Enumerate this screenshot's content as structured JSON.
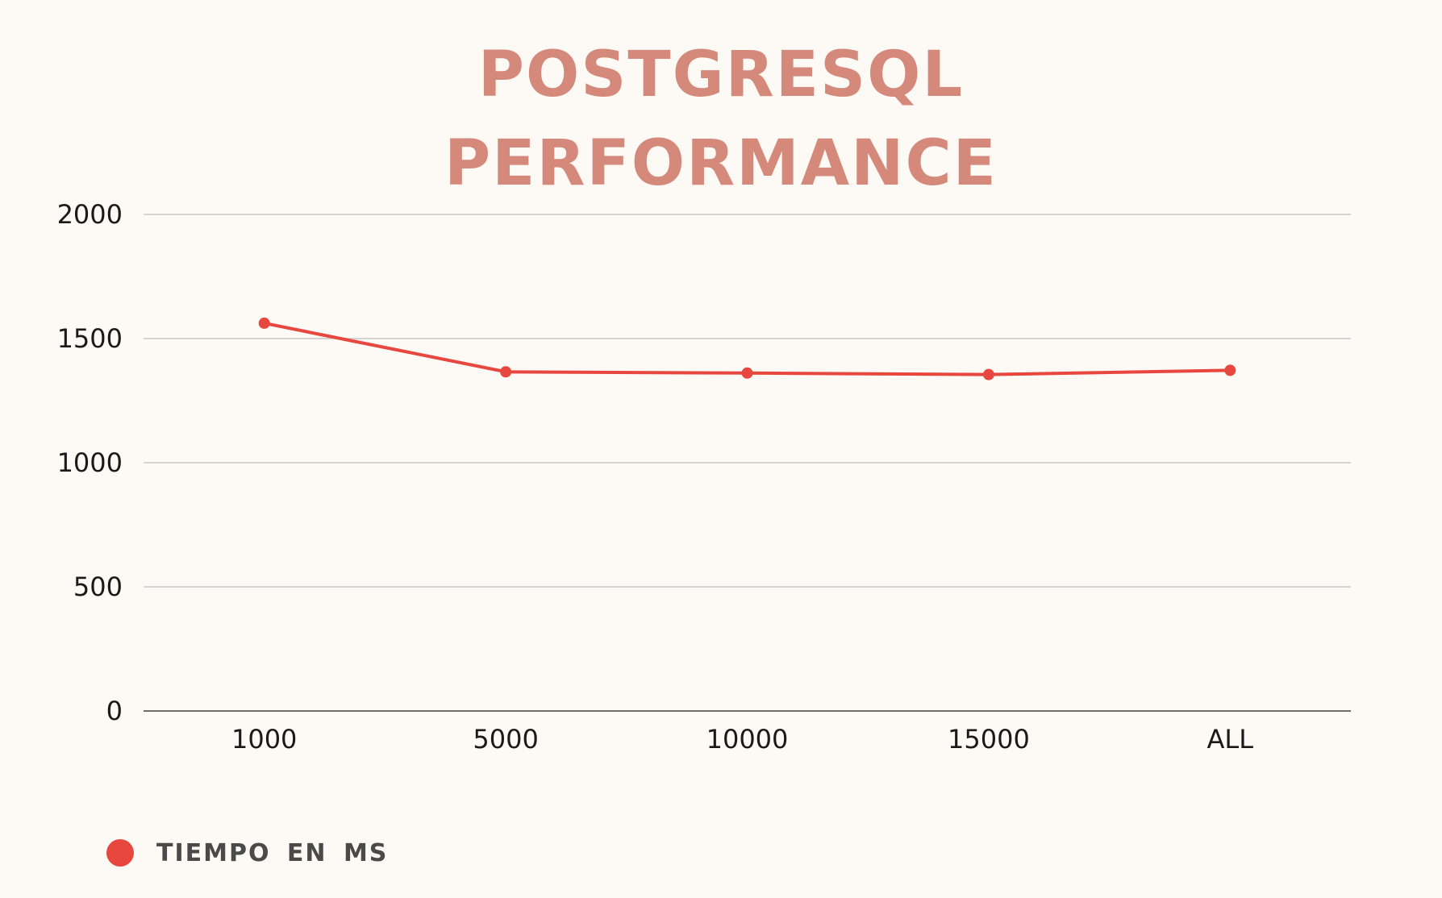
{
  "chart_data": {
    "type": "line",
    "title": [
      "POSTGRESQL",
      "PERFORMANCE"
    ],
    "xlabel": "",
    "ylabel": "",
    "categories": [
      "1000",
      "5000",
      "10000",
      "15000",
      "ALL"
    ],
    "series": [
      {
        "name": "TIEMPO EN MS",
        "values": [
          1562,
          1366,
          1361,
          1355,
          1372
        ],
        "color": "#e8473f"
      }
    ],
    "ylim": [
      0,
      2000
    ],
    "yticks": [
      0,
      500,
      1000,
      1500,
      2000
    ],
    "grid": true,
    "legend": "bottom-left"
  },
  "colors": {
    "background": "#fdf9f5",
    "title": "#d4897a",
    "gridline": "#c8c8c8",
    "axis": "#6e6e6e",
    "tick_text": "#1a1a1a",
    "legend_text": "#4a4a4a"
  }
}
